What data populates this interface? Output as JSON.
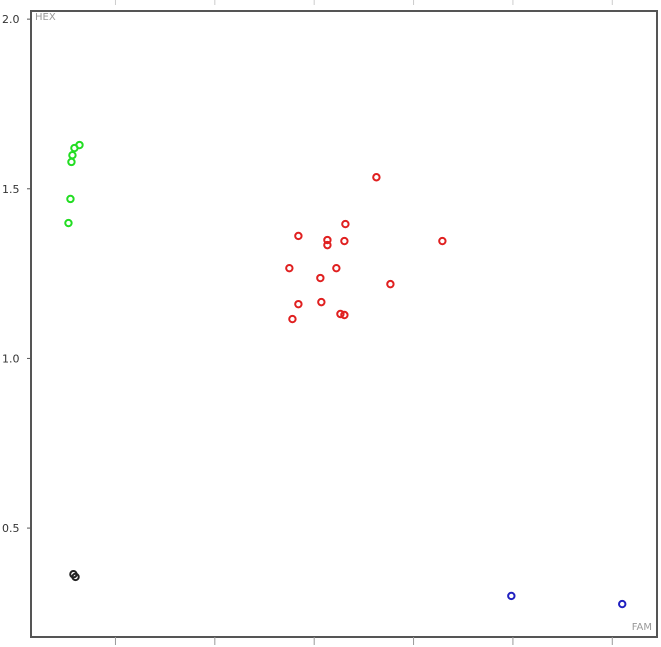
{
  "chart_data": {
    "type": "scatter",
    "x_label": "FAM",
    "y_label": "HEX",
    "xlim": [
      0.15,
      6.45
    ],
    "xticks": [
      1,
      2,
      3,
      4,
      5,
      6
    ],
    "ylim": [
      0.179,
      2.024
    ],
    "yticks": [
      {
        "value": 0.5,
        "label": "0.5"
      },
      {
        "value": 1.0,
        "label": "1.0"
      },
      {
        "value": 1.5,
        "label": "1.5"
      },
      {
        "value": 2.0,
        "label": "2.0"
      }
    ],
    "grid": false,
    "series": [
      {
        "color": "#22dd22",
        "x": [
          0.527,
          0.547,
          0.557,
          0.567,
          0.587,
          0.638
        ],
        "values": [
          1.399,
          1.47,
          1.579,
          1.599,
          1.62,
          1.629
        ]
      },
      {
        "color": "#e02020",
        "x": [
          3.626,
          3.314,
          2.841,
          3.133,
          3.304,
          3.133,
          4.29,
          2.75,
          3.223,
          3.062,
          3.767,
          2.841,
          3.072,
          2.781,
          3.264,
          3.304
        ],
        "values": [
          1.534,
          1.396,
          1.361,
          1.349,
          1.346,
          1.334,
          1.346,
          1.266,
          1.266,
          1.237,
          1.219,
          1.16,
          1.166,
          1.116,
          1.131,
          1.128
        ]
      },
      {
        "color": "#2020c0",
        "x": [
          4.984,
          6.1
        ],
        "values": [
          0.3,
          0.276
        ]
      },
      {
        "color": "#222222",
        "x": [
          0.577,
          0.598
        ],
        "values": [
          0.364,
          0.356
        ]
      }
    ]
  }
}
